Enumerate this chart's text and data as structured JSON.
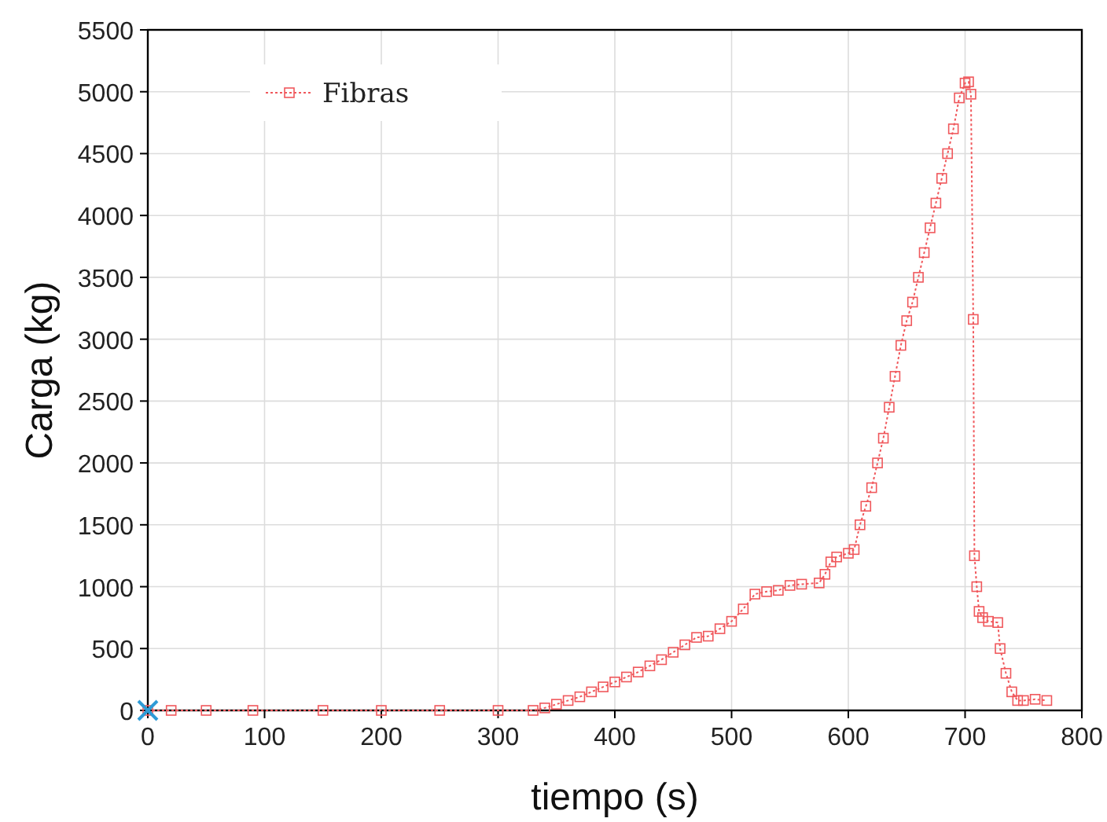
{
  "chart_data": {
    "type": "line",
    "xlabel": "tiempo (s)",
    "ylabel": "Carga (kg)",
    "xlim": [
      0,
      800
    ],
    "ylim": [
      0,
      5500
    ],
    "xticks": [
      0,
      100,
      200,
      300,
      400,
      500,
      600,
      700,
      800
    ],
    "yticks": [
      0,
      500,
      1000,
      1500,
      2000,
      2500,
      3000,
      3500,
      4000,
      4500,
      5000,
      5500
    ],
    "grid": true,
    "legend": "top left",
    "marker": "square",
    "line_style": "dotted",
    "series": [
      {
        "name": "Fibras",
        "color": "#f0585c",
        "x": [
          0,
          20,
          50,
          90,
          150,
          200,
          250,
          300,
          330,
          340,
          350,
          360,
          370,
          380,
          390,
          400,
          410,
          420,
          430,
          440,
          450,
          460,
          470,
          480,
          490,
          500,
          510,
          520,
          530,
          540,
          550,
          560,
          575,
          580,
          585,
          590,
          600,
          605,
          610,
          615,
          620,
          625,
          630,
          635,
          640,
          645,
          650,
          655,
          660,
          665,
          670,
          675,
          680,
          685,
          690,
          695,
          700,
          703,
          705,
          707,
          708,
          710,
          712,
          715,
          720,
          728,
          730,
          735,
          740,
          745,
          750,
          760,
          770
        ],
        "values": [
          0,
          0,
          0,
          0,
          0,
          0,
          0,
          0,
          0,
          20,
          50,
          80,
          110,
          150,
          190,
          230,
          270,
          310,
          360,
          410,
          470,
          530,
          590,
          600,
          660,
          720,
          820,
          940,
          960,
          970,
          1010,
          1020,
          1030,
          1100,
          1200,
          1240,
          1270,
          1300,
          1500,
          1650,
          1800,
          2000,
          2200,
          2450,
          2700,
          2950,
          3150,
          3300,
          3500,
          3700,
          3900,
          4100,
          4300,
          4500,
          4700,
          4950,
          5070,
          5080,
          4980,
          3160,
          1250,
          1000,
          800,
          750,
          720,
          710,
          500,
          300,
          150,
          80,
          80,
          90,
          80
        ]
      },
      {
        "type": "scatter",
        "color": "#2e9bd6",
        "marker": "cross",
        "x": [
          0
        ],
        "values": [
          0
        ]
      }
    ]
  }
}
